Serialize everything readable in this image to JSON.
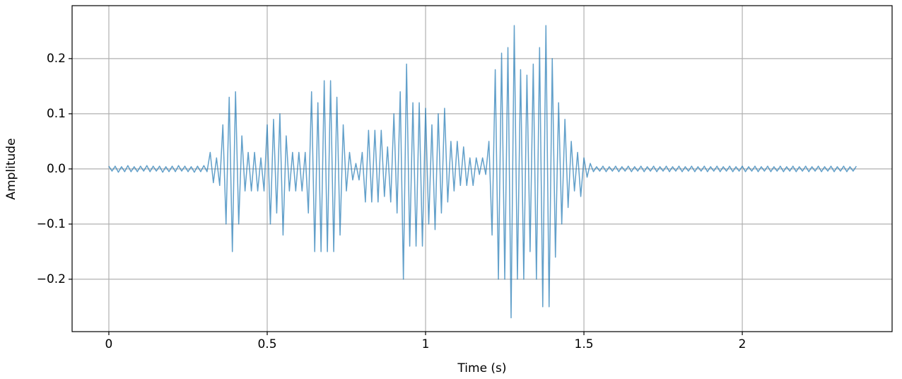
{
  "chart_data": {
    "type": "line",
    "xlabel": "Time (s)",
    "ylabel": "Amplitude",
    "color": "#1f77b4",
    "grid": true,
    "xlim": [
      -0.116,
      2.473
    ],
    "ylim": [
      -0.295,
      0.296
    ],
    "xticks": [
      0,
      0.5,
      1,
      1.5,
      2
    ],
    "yticks": [
      {
        "value": -0.2,
        "label": "−0.2"
      },
      {
        "value": -0.1,
        "label": "−0.1"
      },
      {
        "value": 0,
        "label": "0.0"
      },
      0.1,
      0.2
    ],
    "x": [
      0,
      0.01,
      0.02,
      0.03,
      0.04,
      0.05,
      0.06,
      0.07,
      0.08,
      0.09,
      0.1,
      0.11,
      0.12,
      0.13,
      0.14,
      0.15,
      0.16,
      0.17,
      0.18,
      0.19,
      0.2,
      0.21,
      0.22,
      0.23,
      0.24,
      0.25,
      0.26,
      0.27,
      0.28,
      0.29,
      0.3,
      0.31,
      0.32,
      0.33,
      0.34,
      0.35,
      0.36,
      0.37,
      0.38,
      0.39,
      0.4,
      0.41,
      0.42,
      0.43,
      0.44,
      0.45,
      0.46,
      0.47,
      0.48,
      0.49,
      0.5,
      0.51,
      0.52,
      0.53,
      0.54,
      0.55,
      0.56,
      0.57,
      0.58,
      0.59,
      0.6,
      0.61,
      0.62,
      0.63,
      0.64,
      0.65,
      0.66,
      0.67,
      0.68,
      0.69,
      0.7,
      0.71,
      0.72,
      0.73,
      0.74,
      0.75,
      0.76,
      0.77,
      0.78,
      0.79,
      0.8,
      0.81,
      0.82,
      0.83,
      0.84,
      0.85,
      0.86,
      0.87,
      0.88,
      0.89,
      0.9,
      0.91,
      0.92,
      0.93,
      0.94,
      0.95,
      0.96,
      0.97,
      0.98,
      0.99,
      1,
      1.01,
      1.02,
      1.03,
      1.04,
      1.05,
      1.06,
      1.07,
      1.08,
      1.09,
      1.1,
      1.11,
      1.12,
      1.13,
      1.14,
      1.15,
      1.16,
      1.17,
      1.18,
      1.19,
      1.2,
      1.21,
      1.22,
      1.23,
      1.24,
      1.25,
      1.26,
      1.27,
      1.28,
      1.29,
      1.3,
      1.31,
      1.32,
      1.33,
      1.34,
      1.35,
      1.36,
      1.37,
      1.38,
      1.39,
      1.4,
      1.41,
      1.42,
      1.43,
      1.44,
      1.45,
      1.46,
      1.47,
      1.48,
      1.49,
      1.5,
      1.51,
      1.52,
      1.53,
      1.54,
      1.55,
      1.56,
      1.57,
      1.58,
      1.59,
      1.6,
      1.61,
      1.62,
      1.63,
      1.64,
      1.65,
      1.66,
      1.67,
      1.68,
      1.69,
      1.7,
      1.71,
      1.72,
      1.73,
      1.74,
      1.75,
      1.76,
      1.77,
      1.78,
      1.79,
      1.8,
      1.81,
      1.82,
      1.83,
      1.84,
      1.85,
      1.86,
      1.87,
      1.88,
      1.89,
      1.9,
      1.91,
      1.92,
      1.93,
      1.94,
      1.95,
      1.96,
      1.97,
      1.98,
      1.99,
      2,
      2.01,
      2.02,
      2.03,
      2.04,
      2.05,
      2.06,
      2.07,
      2.08,
      2.09,
      2.1,
      2.11,
      2.12,
      2.13,
      2.14,
      2.15,
      2.16,
      2.17,
      2.18,
      2.19,
      2.2,
      2.21,
      2.22,
      2.23,
      2.24,
      2.25,
      2.26,
      2.27,
      2.28,
      2.29,
      2.3,
      2.31,
      2.32,
      2.33,
      2.34,
      2.35,
      2.36
    ],
    "values": [
      0.005,
      -0.004,
      0.005,
      -0.006,
      0.004,
      -0.005,
      0.006,
      -0.005,
      0.004,
      -0.005,
      0.005,
      -0.004,
      0.006,
      -0.005,
      0.005,
      -0.004,
      0.005,
      -0.006,
      0.004,
      -0.005,
      0.005,
      -0.005,
      0.006,
      -0.004,
      0.005,
      -0.005,
      0.004,
      -0.006,
      0.005,
      -0.005,
      0.006,
      -0.005,
      0.03,
      -0.025,
      0.02,
      -0.03,
      0.08,
      -0.1,
      0.13,
      -0.15,
      0.14,
      -0.1,
      0.06,
      -0.04,
      0.03,
      -0.04,
      0.03,
      -0.04,
      0.02,
      -0.04,
      0.08,
      -0.1,
      0.09,
      -0.08,
      0.1,
      -0.12,
      0.06,
      -0.04,
      0.03,
      -0.04,
      0.03,
      -0.04,
      0.03,
      -0.08,
      0.14,
      -0.15,
      0.12,
      -0.15,
      0.16,
      -0.15,
      0.16,
      -0.15,
      0.13,
      -0.12,
      0.08,
      -0.04,
      0.03,
      -0.02,
      0.01,
      -0.02,
      0.03,
      -0.06,
      0.07,
      -0.06,
      0.07,
      -0.06,
      0.07,
      -0.05,
      0.04,
      -0.06,
      0.1,
      -0.08,
      0.14,
      -0.2,
      0.19,
      -0.14,
      0.12,
      -0.14,
      0.12,
      -0.14,
      0.11,
      -0.1,
      0.08,
      -0.11,
      0.1,
      -0.08,
      0.11,
      -0.06,
      0.05,
      -0.04,
      0.05,
      -0.03,
      0.04,
      -0.03,
      0.02,
      -0.03,
      0.02,
      -0.01,
      0.02,
      -0.01,
      0.05,
      -0.12,
      0.18,
      -0.2,
      0.21,
      -0.2,
      0.22,
      -0.27,
      0.26,
      -0.2,
      0.18,
      -0.2,
      0.17,
      -0.15,
      0.19,
      -0.2,
      0.22,
      -0.25,
      0.26,
      -0.25,
      0.2,
      -0.16,
      0.12,
      -0.1,
      0.09,
      -0.07,
      0.05,
      -0.04,
      0.03,
      -0.05,
      0.02,
      -0.015,
      0.01,
      -0.005,
      0.004,
      -0.004,
      0.005,
      -0.005,
      0.004,
      -0.004,
      0.005,
      -0.005,
      0.004,
      -0.004,
      0.005,
      -0.005,
      0.004,
      -0.004,
      0.005,
      -0.005,
      0.004,
      -0.004,
      0.005,
      -0.005,
      0.004,
      -0.004,
      0.005,
      -0.005,
      0.004,
      -0.004,
      0.005,
      -0.005,
      0.004,
      -0.004,
      0.005,
      -0.005,
      0.004,
      -0.004,
      0.005,
      -0.005,
      0.004,
      -0.004,
      0.005,
      -0.005,
      0.004,
      -0.004,
      0.005,
      -0.005,
      0.004,
      -0.004,
      0.005,
      -0.005,
      0.004,
      -0.004,
      0.005,
      -0.005,
      0.004,
      -0.004,
      0.005,
      -0.005,
      0.004,
      -0.004,
      0.005,
      -0.005,
      0.004,
      -0.004,
      0.005,
      -0.005,
      0.004,
      -0.004,
      0.005,
      -0.005,
      0.004,
      -0.004,
      0.005,
      -0.005,
      0.004,
      -0.004,
      0.005,
      -0.005,
      0.004,
      -0.004,
      0.005,
      -0.005,
      0.004,
      -0.004,
      0.005
    ]
  }
}
